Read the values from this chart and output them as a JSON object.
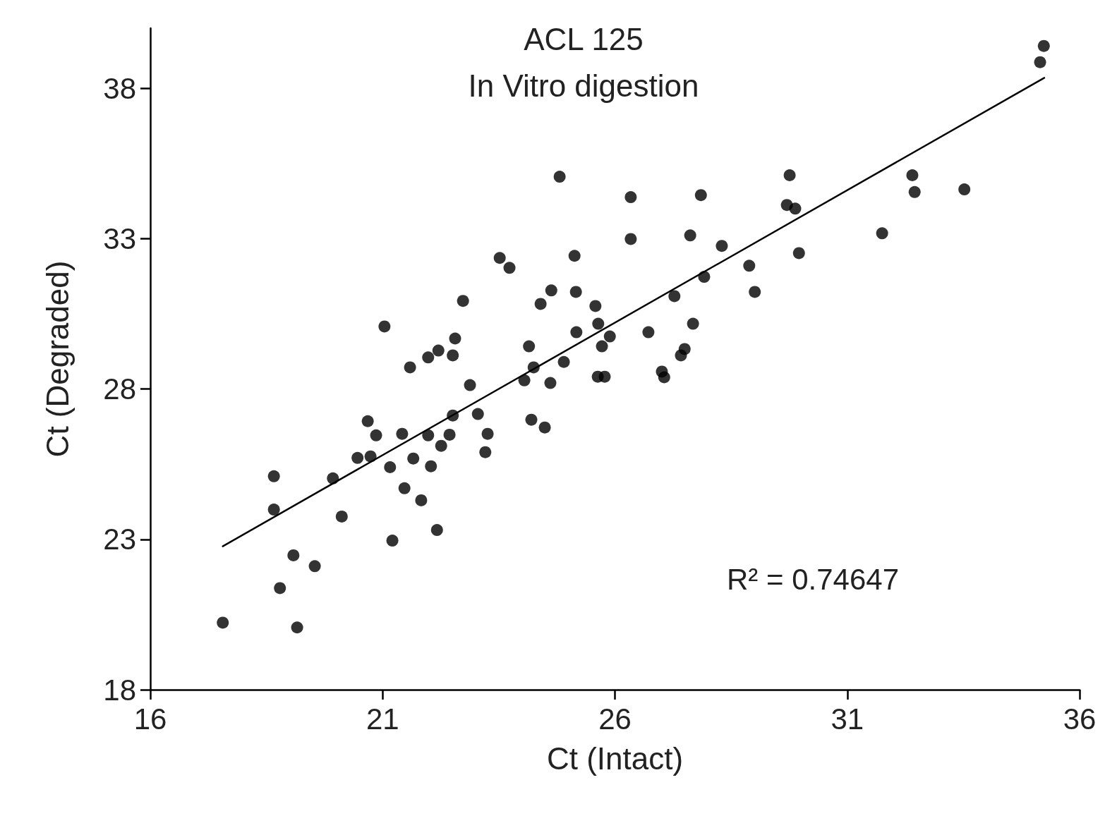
{
  "chart_data": {
    "type": "scatter",
    "title": "ACL 125",
    "subtitle": "In Vitro digestion",
    "xlabel": "Ct (Intact)",
    "ylabel": "Ct (Degraded)",
    "annotations": [
      "R² = 0.74647"
    ],
    "xlim": [
      16,
      36
    ],
    "xticks": [
      16,
      21,
      26,
      31,
      36
    ],
    "ylim": [
      18,
      40
    ],
    "yticks": [
      18,
      23,
      28,
      33,
      38
    ],
    "grid": false,
    "marker": "circle",
    "series": [
      {
        "color": "#000000",
        "x": [
          17.56,
          18.66,
          18.66,
          18.79,
          19.08,
          19.16,
          19.54,
          19.93,
          20.12,
          20.46,
          20.68,
          20.74,
          20.86,
          21.04,
          21.16,
          21.21,
          21.42,
          21.47,
          21.59,
          21.66,
          21.83,
          21.98,
          22.04,
          21.98,
          22.17,
          22.2,
          22.26,
          22.44,
          22.51,
          22.56,
          22.51,
          22.73,
          22.88,
          23.05,
          23.21,
          23.26,
          23.52,
          23.73,
          24.05,
          24.15,
          24.2,
          24.25,
          24.4,
          24.49,
          24.63,
          24.61,
          24.81,
          24.9,
          25.13,
          25.16,
          25.17,
          25.58,
          25.64,
          25.63,
          25.72,
          25.78,
          25.89,
          26.34,
          26.34,
          26.72,
          27.01,
          27.06,
          27.28,
          27.42,
          27.5,
          27.62,
          27.68,
          27.85,
          27.92,
          28.3,
          28.89,
          29.01,
          29.7,
          29.76,
          29.88,
          29.96,
          31.75,
          32.4,
          32.45,
          33.52,
          35.15,
          35.23
        ],
        "values": [
          20.23,
          25.1,
          23.99,
          21.38,
          22.47,
          20.07,
          22.11,
          25.03,
          23.76,
          25.71,
          26.93,
          25.76,
          26.46,
          30.08,
          25.4,
          22.96,
          26.51,
          24.7,
          28.72,
          25.69,
          24.3,
          26.46,
          25.43,
          29.05,
          23.31,
          29.28,
          26.11,
          26.48,
          29.12,
          29.68,
          27.12,
          30.93,
          28.13,
          27.17,
          25.9,
          26.51,
          32.36,
          32.03,
          28.29,
          29.42,
          26.98,
          28.72,
          30.83,
          26.72,
          31.28,
          28.2,
          35.06,
          28.9,
          32.43,
          31.23,
          29.89,
          30.76,
          30.17,
          28.41,
          29.42,
          28.41,
          29.75,
          34.38,
          32.99,
          29.89,
          28.58,
          28.39,
          31.09,
          29.12,
          29.33,
          33.11,
          30.17,
          34.45,
          31.73,
          32.76,
          32.1,
          31.23,
          34.12,
          35.11,
          34.0,
          32.52,
          33.18,
          35.11,
          34.55,
          34.64,
          38.87,
          39.41
        ]
      },
      {
        "type": "line",
        "color": "#000000",
        "marker": "none",
        "line_style": "solid",
        "x": [
          17.56,
          35.24
        ],
        "values": [
          22.77,
          38.35
        ]
      }
    ]
  }
}
